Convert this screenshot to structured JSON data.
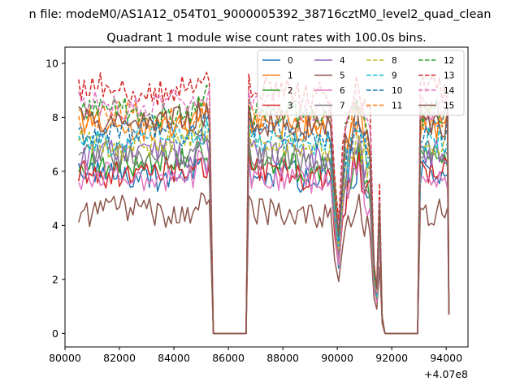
{
  "chart_data": {
    "type": "line",
    "suptitle": "n file: modeM0/AS1A12_054T01_9000005392_38716cztM0_level2_quad_clean",
    "title": "Quadrant 1 module wise count rates with 100.0s bins.",
    "xlabel": "",
    "ylabel": "",
    "x_offset_label": "+4.07e8",
    "xlim": [
      80000,
      94800
    ],
    "ylim": [
      -0.5,
      10.6
    ],
    "xticks": [
      80000,
      82000,
      84000,
      86000,
      88000,
      90000,
      92000,
      94000
    ],
    "xtick_labels": [
      "80000",
      "82000",
      "84000",
      "86000",
      "88000",
      "90000",
      "92000",
      "94000"
    ],
    "yticks": [
      0,
      2,
      4,
      6,
      8,
      10
    ],
    "ytick_labels": [
      "0",
      "2",
      "4",
      "6",
      "8",
      "10"
    ],
    "legend_position": "top-right",
    "legend_columns": 4,
    "series": [
      {
        "name": "0",
        "color": "#1f77b4",
        "style": "solid",
        "level": 5.9
      },
      {
        "name": "1",
        "color": "#ff7f0e",
        "style": "solid",
        "level": 7.7
      },
      {
        "name": "2",
        "color": "#2ca02c",
        "style": "solid",
        "level": 6.3
      },
      {
        "name": "3",
        "color": "#d62728",
        "style": "solid",
        "level": 6.0
      },
      {
        "name": "4",
        "color": "#9467bd",
        "style": "solid",
        "level": 6.7
      },
      {
        "name": "5",
        "color": "#8c564b",
        "style": "solid",
        "level": 4.5
      },
      {
        "name": "6",
        "color": "#e377c2",
        "style": "solid",
        "level": 5.8
      },
      {
        "name": "7",
        "color": "#7f7f7f",
        "style": "solid",
        "level": 6.6
      },
      {
        "name": "8",
        "color": "#bcbd22",
        "style": "dashed",
        "level": 7.0
      },
      {
        "name": "9",
        "color": "#17becf",
        "style": "dashed",
        "level": 7.2
      },
      {
        "name": "10",
        "color": "#1f77b4",
        "style": "dashed",
        "level": 7.5
      },
      {
        "name": "11",
        "color": "#ff7f0e",
        "style": "dashed",
        "level": 8.0
      },
      {
        "name": "12",
        "color": "#2ca02c",
        "style": "dashed",
        "level": 8.2
      },
      {
        "name": "13",
        "color": "#d62728",
        "style": "dashed",
        "level": 9.0
      },
      {
        "name": "14",
        "color": "#e377c2",
        "style": "dashed",
        "level": 8.4
      },
      {
        "name": "15",
        "color": "#8c564b",
        "style": "solid",
        "level": 7.8
      }
    ],
    "segments_note": "Piecewise x-ranges (data units): data 80500-85350, gap zeros 85400-86650, data 86750-89900, drop 89900-90300, recovery 90300-91300, dip 91300-91550, zeros 91750-92950, data 93000-94100"
  }
}
